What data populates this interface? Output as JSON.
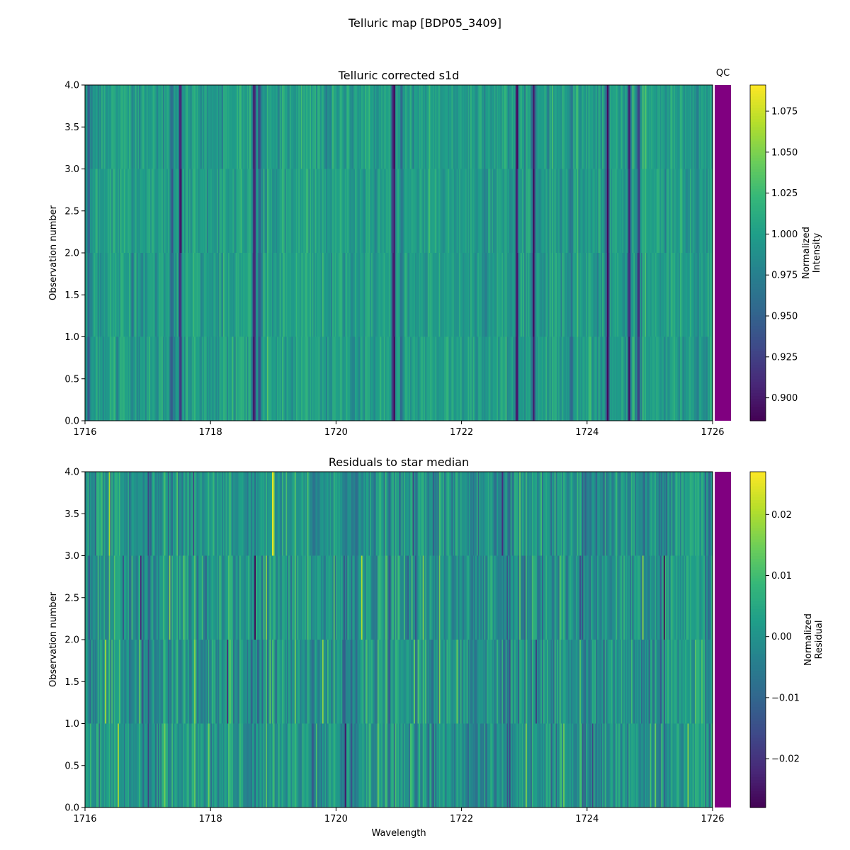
{
  "figure": {
    "suptitle": "Telluric map [BDP05_3409]"
  },
  "chart_data": [
    {
      "type": "heatmap",
      "title": "Telluric corrected s1d",
      "xlabel": "",
      "ylabel": "Observation number",
      "xlim": [
        1716,
        1726
      ],
      "ylim": [
        0.0,
        4.0
      ],
      "x_ticks": [
        "1716",
        "1718",
        "1720",
        "1722",
        "1724",
        "1726"
      ],
      "y_ticks": [
        "0.0",
        "0.5",
        "1.0",
        "1.5",
        "2.0",
        "2.5",
        "3.0",
        "3.5",
        "4.0"
      ],
      "rows": 4,
      "colormap": "viridis",
      "qc_label": "QC",
      "qc_color": "#800080",
      "colorbar": {
        "label_line1": "Normalized",
        "label_line2": "Intensity",
        "range": [
          0.886,
          1.091
        ],
        "ticks": [
          "0.900",
          "0.925",
          "0.950",
          "0.975",
          "1.000",
          "1.025",
          "1.050",
          "1.075"
        ]
      },
      "absorption_lines": [
        {
          "wavelength": 1716.06,
          "depth": 0.06
        },
        {
          "wavelength": 1717.38,
          "depth": 0.05
        },
        {
          "wavelength": 1717.52,
          "depth": 0.1
        },
        {
          "wavelength": 1718.7,
          "depth": 0.11
        },
        {
          "wavelength": 1718.78,
          "depth": 0.06
        },
        {
          "wavelength": 1720.92,
          "depth": 0.12
        },
        {
          "wavelength": 1721.05,
          "depth": 0.05
        },
        {
          "wavelength": 1722.88,
          "depth": 0.11
        },
        {
          "wavelength": 1723.15,
          "depth": 0.11
        },
        {
          "wavelength": 1723.75,
          "depth": 0.05
        },
        {
          "wavelength": 1724.33,
          "depth": 0.11
        },
        {
          "wavelength": 1724.67,
          "depth": 0.1
        },
        {
          "wavelength": 1724.82,
          "depth": 0.08
        }
      ],
      "continuum": 1.0,
      "noise_level": 0.015
    },
    {
      "type": "heatmap",
      "title": "Residuals to star median",
      "xlabel": "Wavelength",
      "ylabel": "Observation number",
      "xlim": [
        1716,
        1726
      ],
      "ylim": [
        0.0,
        4.0
      ],
      "x_ticks": [
        "1716",
        "1718",
        "1720",
        "1722",
        "1724",
        "1726"
      ],
      "y_ticks": [
        "0.0",
        "0.5",
        "1.0",
        "1.5",
        "2.0",
        "2.5",
        "3.0",
        "3.5",
        "4.0"
      ],
      "rows": 4,
      "colormap": "viridis",
      "qc_color": "#800080",
      "colorbar": {
        "label_line1": "Normalized",
        "label_line2": "Residual",
        "range": [
          -0.028,
          0.027
        ],
        "ticks": [
          "0.02",
          "0.01",
          "0.00",
          "−0.01",
          "−0.02"
        ]
      },
      "continuum": 0.0,
      "noise_level": 0.007
    }
  ]
}
